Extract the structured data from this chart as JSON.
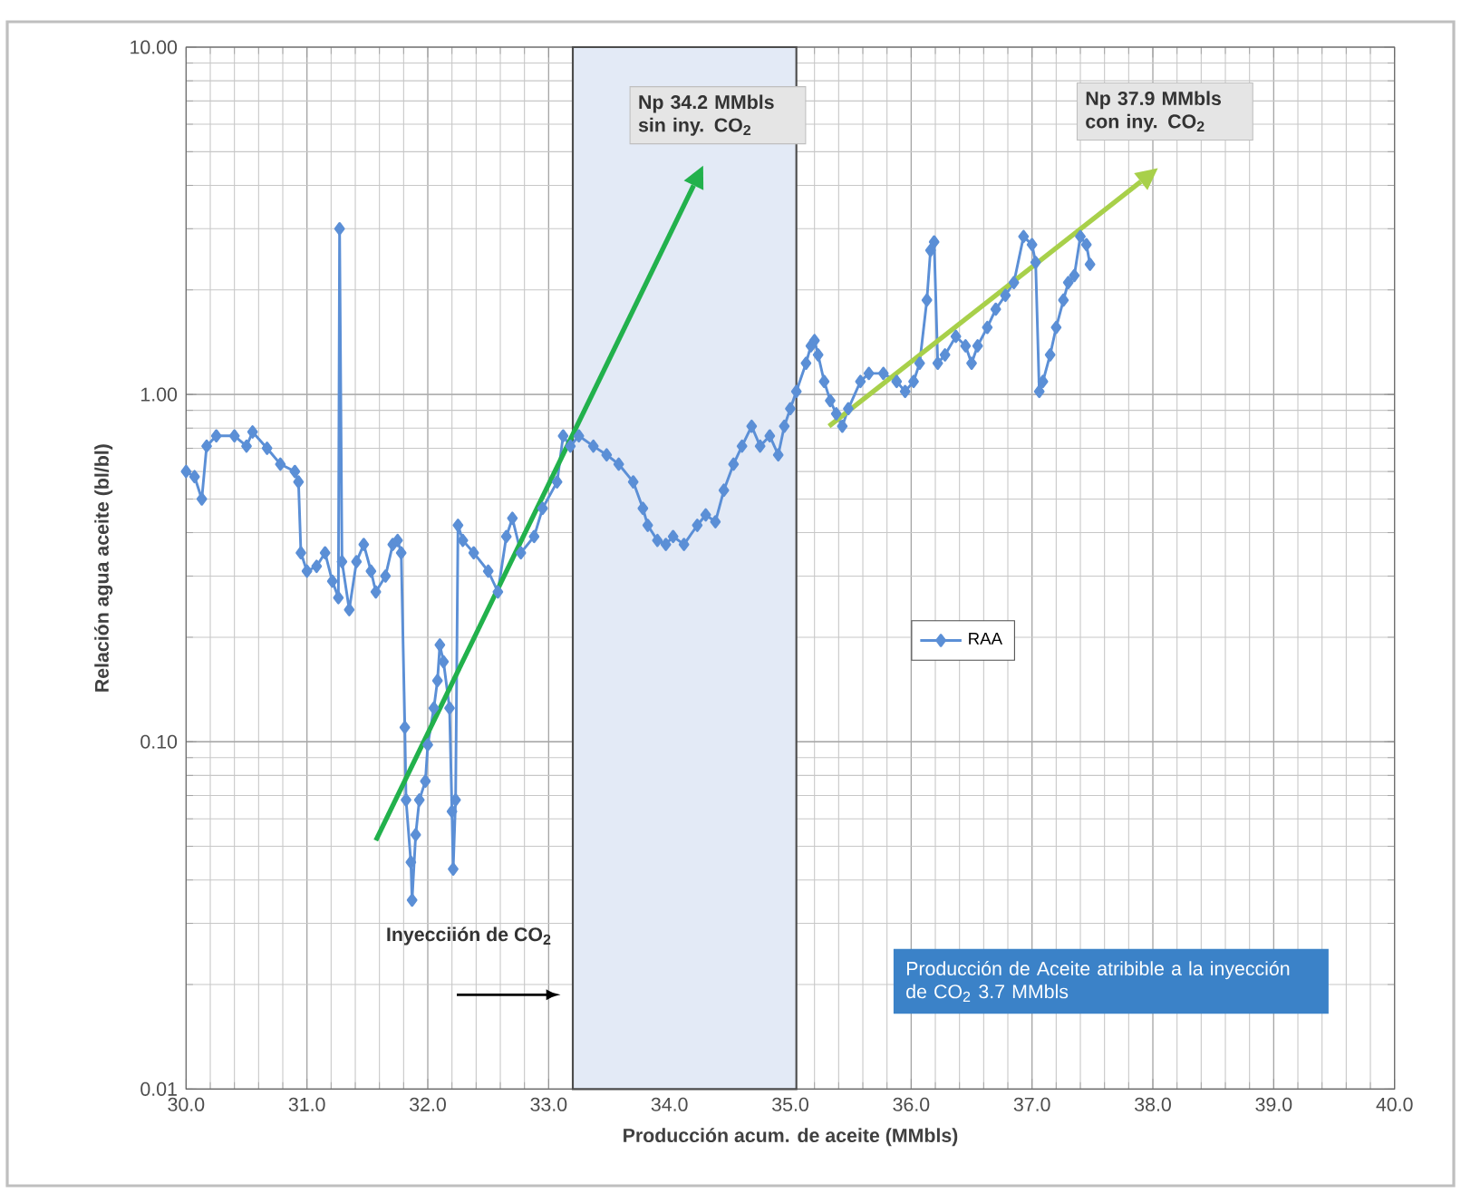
{
  "chart_data": {
    "type": "line",
    "xlabel": "Producción acum. de aceite (MMbls)",
    "ylabel": "Relación agua aceite (bl/bl)",
    "log": "y",
    "grid": true,
    "legend": "center",
    "marker": "diamond",
    "line_style": "solid",
    "xlim": [
      30,
      40
    ],
    "ylim": [
      0.01,
      10
    ],
    "xticks": [
      {
        "value": 30,
        "label": "30.0"
      },
      {
        "value": 31,
        "label": "31.0"
      },
      {
        "value": 32,
        "label": "32.0"
      },
      {
        "value": 33,
        "label": "33.0"
      },
      {
        "value": 34,
        "label": "34.0"
      },
      {
        "value": 35,
        "label": "35.0"
      },
      {
        "value": 36,
        "label": "36.0"
      },
      {
        "value": 37,
        "label": "37.0"
      },
      {
        "value": 38,
        "label": "38.0"
      },
      {
        "value": 39,
        "label": "39.0"
      },
      {
        "value": 40,
        "label": "40.0"
      }
    ],
    "yticks": [
      {
        "value": 0.01,
        "label": "0.01"
      },
      {
        "value": 0.1,
        "label": "0.10"
      },
      {
        "value": 1,
        "label": "1.00"
      },
      {
        "value": 10,
        "label": "10.00"
      }
    ],
    "series": [
      {
        "name": "RAA",
        "color": "#5b8fd6",
        "x": [
          30.0,
          30.07,
          30.13,
          30.17,
          30.25,
          30.4,
          30.5,
          30.55,
          30.67,
          30.78,
          30.9,
          30.93,
          30.95,
          31.0,
          31.08,
          31.15,
          31.21,
          31.26,
          31.27,
          31.29,
          31.35,
          31.41,
          31.47,
          31.53,
          31.57,
          31.65,
          31.71,
          31.75,
          31.78,
          31.81,
          31.82,
          31.86,
          31.87,
          31.9,
          31.93,
          31.98,
          32.0,
          32.05,
          32.08,
          32.1,
          32.13,
          32.18,
          32.2,
          32.21,
          32.23,
          32.25,
          32.29,
          32.38,
          32.5,
          32.58,
          32.65,
          32.7,
          32.77,
          32.88,
          32.95,
          33.07,
          33.12,
          33.18,
          33.25,
          33.37,
          33.48,
          33.58,
          33.7,
          33.78,
          33.82,
          33.9,
          33.97,
          34.03,
          34.12,
          34.23,
          34.3,
          34.38,
          34.45,
          34.53,
          34.6,
          34.68,
          34.75,
          34.83,
          34.9,
          34.95,
          35.0,
          35.05,
          35.13,
          35.17,
          35.2,
          35.23,
          35.28,
          35.33,
          35.38,
          35.43,
          35.48,
          35.58,
          35.65,
          35.77,
          35.88,
          35.95,
          36.02,
          36.07,
          36.13,
          36.16,
          36.19,
          36.22,
          36.28,
          36.37,
          36.45,
          36.5,
          36.55,
          36.63,
          36.7,
          36.78,
          36.85,
          36.93,
          37.0,
          37.03,
          37.06,
          37.09,
          37.15,
          37.2,
          37.26,
          37.3,
          37.35,
          37.4,
          37.45,
          37.48
        ],
        "values": [
          0.6,
          0.58,
          0.5,
          0.71,
          0.76,
          0.76,
          0.71,
          0.78,
          0.7,
          0.63,
          0.6,
          0.56,
          0.35,
          0.31,
          0.32,
          0.35,
          0.29,
          0.26,
          3.0,
          0.33,
          0.24,
          0.33,
          0.37,
          0.31,
          0.27,
          0.3,
          0.37,
          0.38,
          0.35,
          0.11,
          0.068,
          0.045,
          0.035,
          0.054,
          0.068,
          0.077,
          0.098,
          0.125,
          0.15,
          0.19,
          0.17,
          0.125,
          0.063,
          0.043,
          0.068,
          0.42,
          0.38,
          0.35,
          0.31,
          0.27,
          0.39,
          0.44,
          0.35,
          0.39,
          0.47,
          0.56,
          0.76,
          0.71,
          0.76,
          0.71,
          0.67,
          0.63,
          0.56,
          0.47,
          0.42,
          0.38,
          0.37,
          0.39,
          0.37,
          0.42,
          0.45,
          0.43,
          0.53,
          0.63,
          0.71,
          0.81,
          0.71,
          0.76,
          0.67,
          0.81,
          0.91,
          1.02,
          1.23,
          1.38,
          1.43,
          1.3,
          1.09,
          0.96,
          0.88,
          0.81,
          0.91,
          1.09,
          1.15,
          1.15,
          1.09,
          1.02,
          1.09,
          1.23,
          1.87,
          2.6,
          2.75,
          1.23,
          1.3,
          1.47,
          1.38,
          1.23,
          1.38,
          1.56,
          1.76,
          1.93,
          2.1,
          2.85,
          2.7,
          2.4,
          1.02,
          1.09,
          1.3,
          1.56,
          1.87,
          2.1,
          2.2,
          2.85,
          2.7,
          2.37
        ]
      },
      {
        "type": "line",
        "color": "#22b14c",
        "marker": "none",
        "x": [
          31.57,
          34.2
        ],
        "values": [
          0.052,
          4.0
        ]
      },
      {
        "type": "line",
        "color": "#a8d04a",
        "marker": "none",
        "x": [
          35.32,
          37.9
        ],
        "values": [
          0.81,
          4.1
        ]
      }
    ],
    "bands": [
      {
        "axis": "x",
        "from": 33.2,
        "to": 35.05,
        "color": "#e3eaf6"
      }
    ],
    "annotations": [
      {
        "text": "Np 34.2 MMbls sin iny. CO$_{2}$",
        "x": 34.2,
        "y": 4.0
      },
      {
        "text": "Np 37.9 MMbls con iny. CO$_{2}$",
        "x": 37.9,
        "y": 4.1
      },
      "Inyecciión de CO$_{2}$",
      "Producción de Aceite atribible a la inyección de CO$_{2}$ 3.7 MMbls"
    ]
  }
}
